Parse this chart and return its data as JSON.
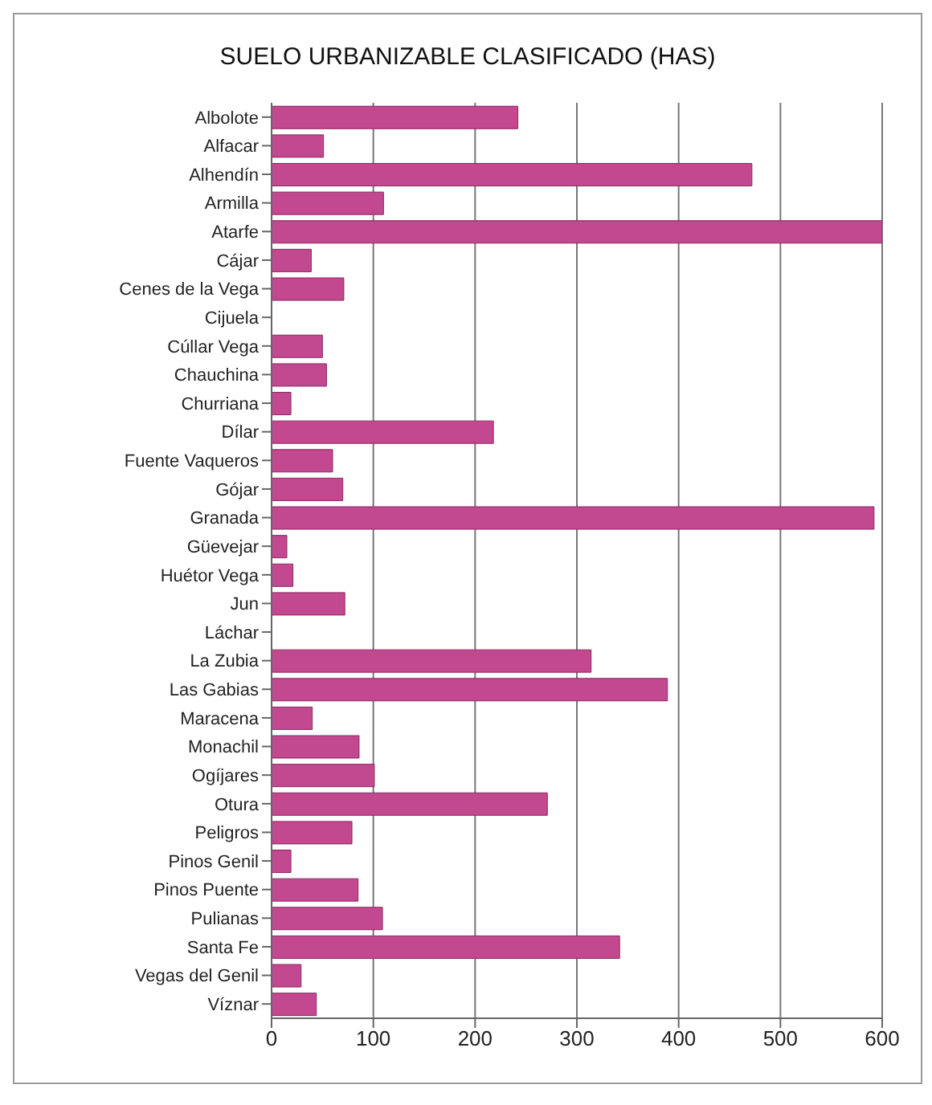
{
  "chart_data": {
    "type": "bar",
    "orientation": "horizontal",
    "title": "SUELO URBANIZABLE CLASIFICADO (HAS)",
    "categories": [
      "Albolote",
      "Alfacar",
      "Alhendín",
      "Armilla",
      "Atarfe",
      "Cájar",
      "Cenes de la Vega",
      "Cijuela",
      "Cúllar Vega",
      "Chauchina",
      "Churriana",
      "Dílar",
      "Fuente Vaqueros",
      "Gójar",
      "Granada",
      "Güevejar",
      "Huétor Vega",
      "Jun",
      "Láchar",
      "La Zubia",
      "Las Gabias",
      "Maracena",
      "Monachil",
      "Ogíjares",
      "Otura",
      "Peligros",
      "Pinos Genil",
      "Pinos Puente",
      "Pulianas",
      "Santa Fe",
      "Vegas del Genil",
      "Víznar"
    ],
    "values": [
      242,
      51,
      472,
      110,
      600,
      39,
      71,
      0,
      50,
      54,
      19,
      218,
      60,
      70,
      592,
      15,
      21,
      72,
      0,
      314,
      389,
      40,
      86,
      101,
      271,
      79,
      19,
      85,
      109,
      342,
      29,
      44
    ],
    "color": "#c2488f",
    "xlim": [
      0,
      600
    ],
    "xticks": [
      0,
      100,
      200,
      300,
      400,
      500,
      600
    ],
    "grid": "x"
  }
}
